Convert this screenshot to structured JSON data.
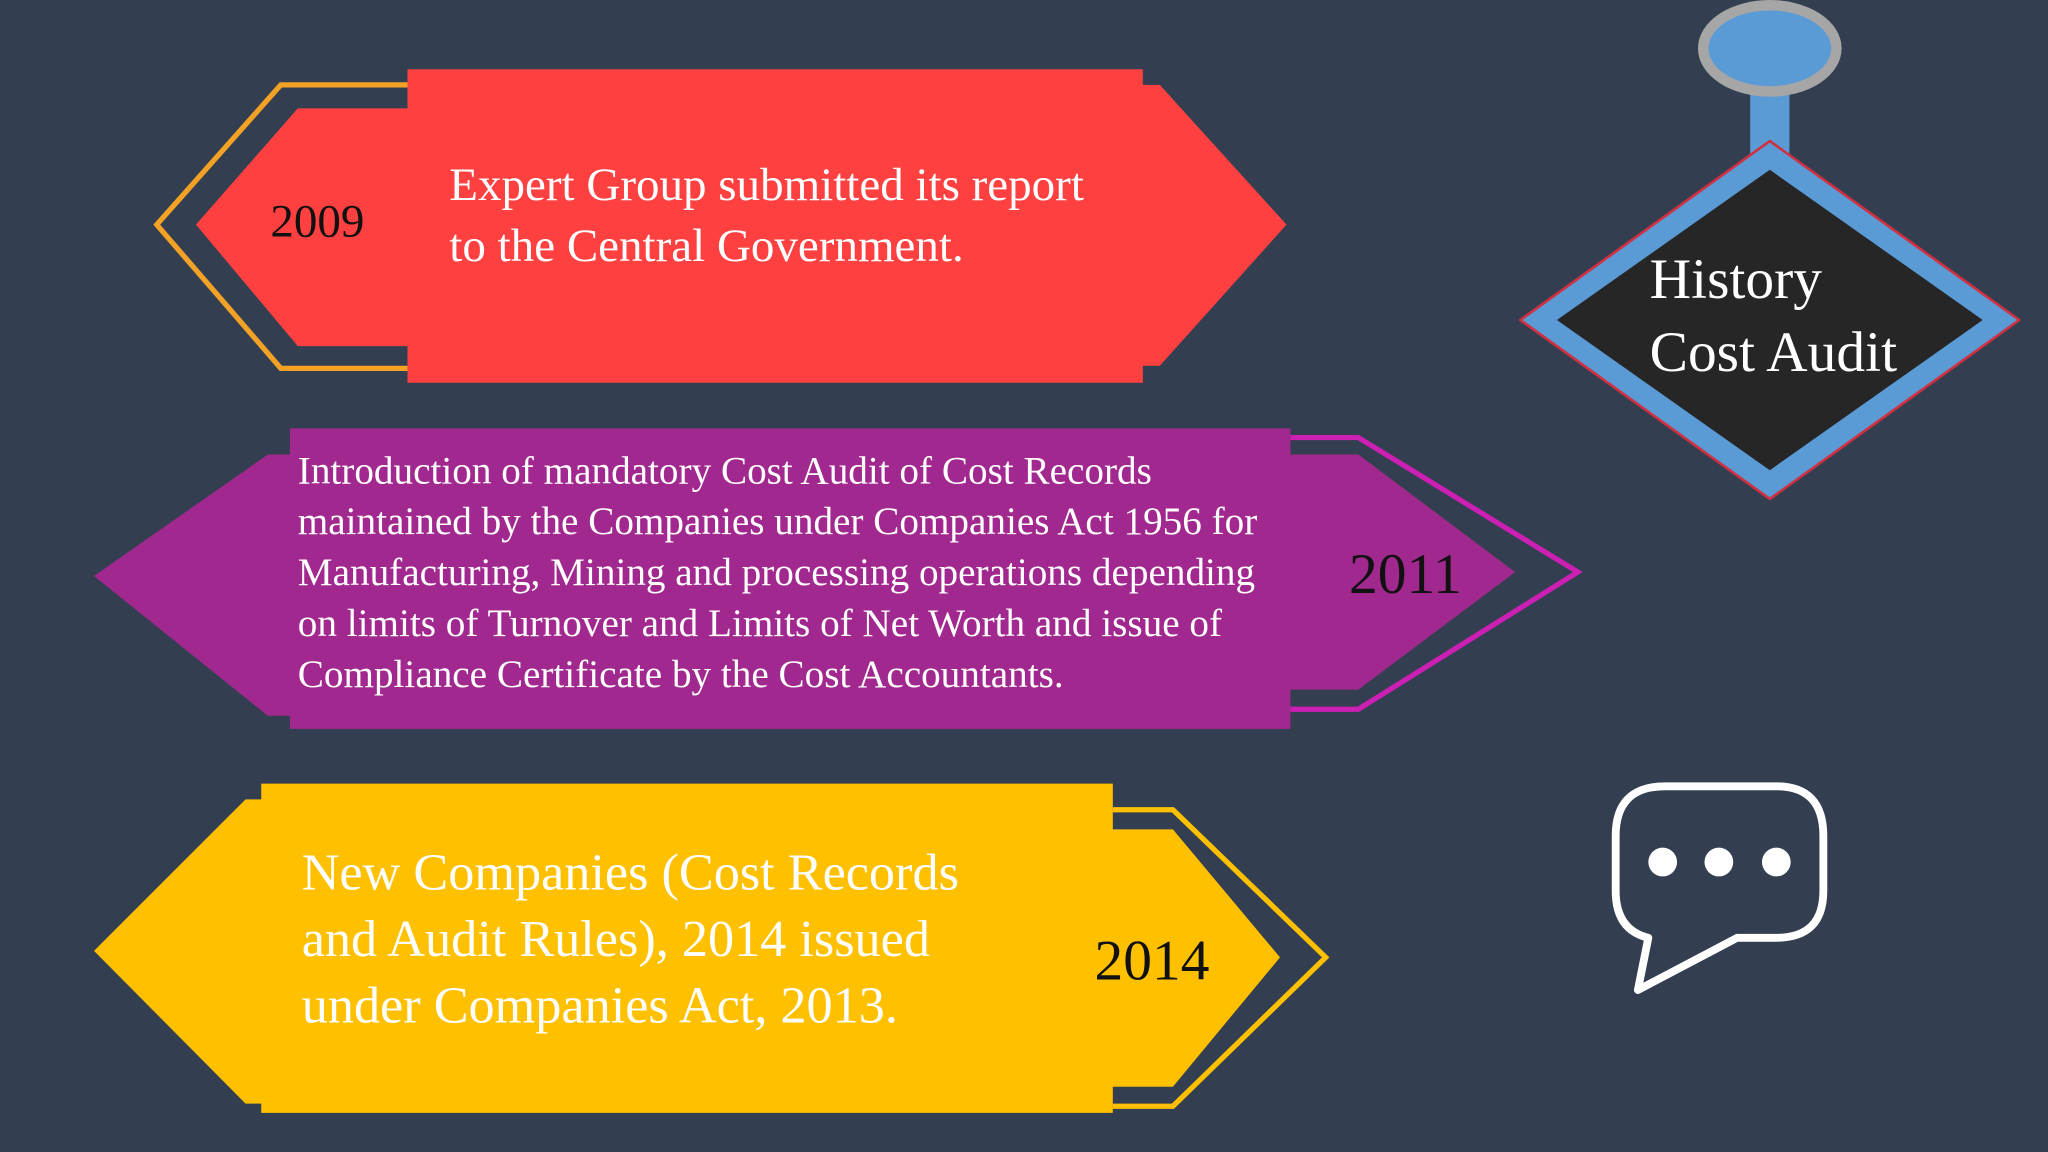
{
  "title": {
    "lines": [
      "History",
      "Cost Audit"
    ]
  },
  "items": [
    {
      "year": "2009",
      "lines": [
        "Expert Group submitted its report",
        "to the Central Government."
      ]
    },
    {
      "year": "2011",
      "lines": [
        "Introduction of mandatory Cost Audit of Cost Records",
        "maintained by the Companies under Companies Act 1956 for",
        "Manufacturing, Mining and processing operations depending",
        "on limits of Turnover and Limits of Net Worth and issue of",
        "Compliance Certificate by the Cost Accountants."
      ]
    },
    {
      "year": "2014",
      "lines": [
        "New Companies (Cost Records",
        "and Audit Rules), 2014 issued",
        "under Companies Act, 2013."
      ]
    }
  ]
}
